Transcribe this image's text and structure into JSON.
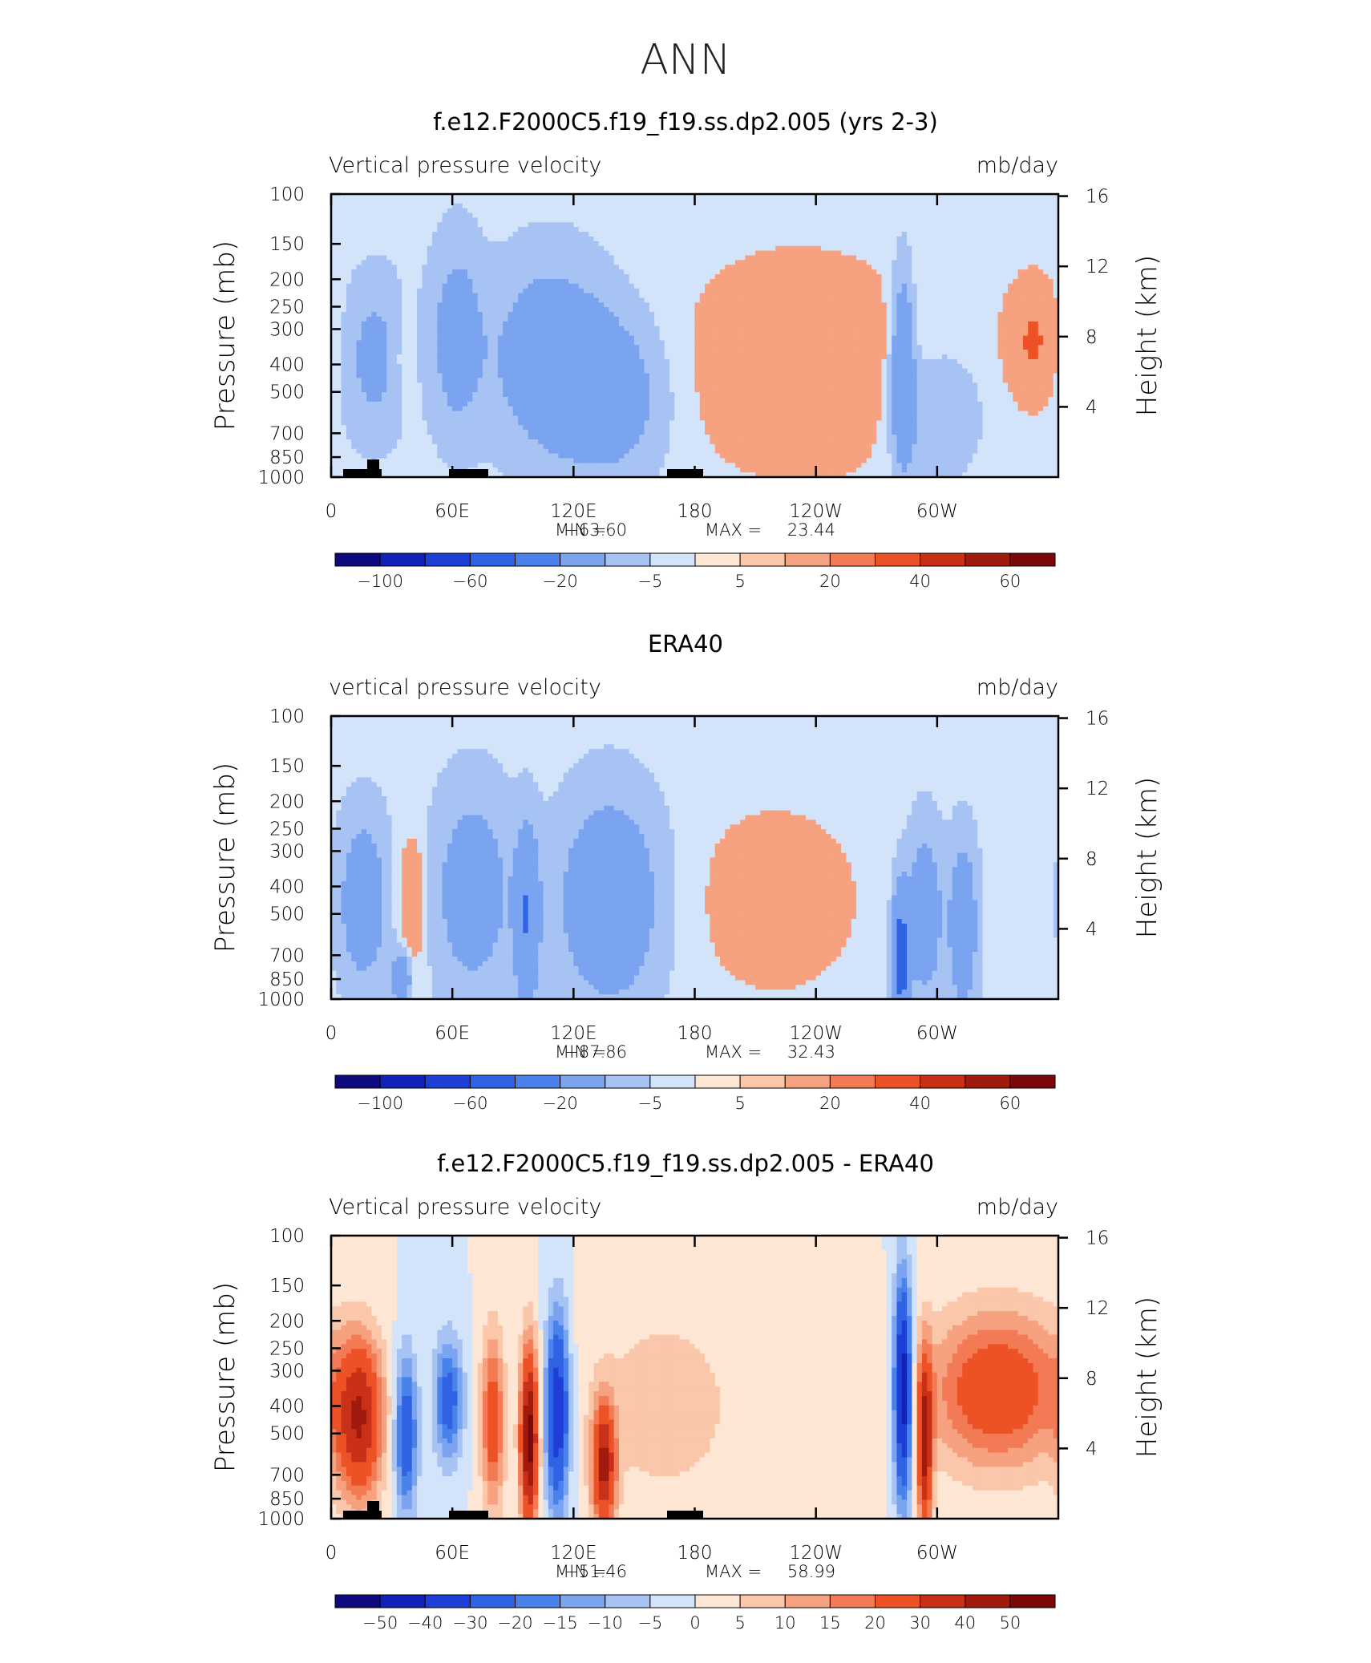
{
  "figure_title": "ANN",
  "chart_data": [
    {
      "type": "heatmap",
      "title": "f.e12.F2000C5.f19_f19.ss.dp2.005 (yrs 2-3)",
      "left_label": "Vertical pressure velocity",
      "right_label": "mb/day",
      "ylabel": "Pressure (mb)",
      "y2label": "Height (km)",
      "x_ticks": [
        "0",
        "60E",
        "120E",
        "180",
        "120W",
        "60W"
      ],
      "y_ticks": [
        "100",
        "150",
        "200",
        "250",
        "300",
        "400",
        "500",
        "700",
        "850",
        "1000"
      ],
      "y2_ticks": [
        "16",
        "12",
        "8",
        "4"
      ],
      "stats": {
        "min_label": "MIN =",
        "min": "−63.60",
        "max_label": "MAX =",
        "max": "23.44"
      },
      "levels": [
        "−100",
        "−60",
        "−20",
        "−5",
        "5",
        "20",
        "40",
        "60"
      ],
      "colorbar_tick_slots": [
        1,
        3,
        5,
        7,
        9,
        11,
        13,
        15
      ],
      "has_orography": true,
      "features": [
        {
          "lon": 22,
          "p": 380,
          "w": 12,
          "h": 0.45,
          "v": -28
        },
        {
          "lon": 36,
          "p": 380,
          "w": 5,
          "h": 0.3,
          "v": 14
        },
        {
          "lon": 62,
          "p": 320,
          "w": 9,
          "h": 0.55,
          "v": -32
        },
        {
          "lon": 108,
          "p": 380,
          "w": 20,
          "h": 0.55,
          "v": -40
        },
        {
          "lon": 140,
          "p": 520,
          "w": 18,
          "h": 0.45,
          "v": -34
        },
        {
          "lon": 232,
          "p": 400,
          "w": 40,
          "h": 0.6,
          "v": 18
        },
        {
          "lon": 283,
          "p": 420,
          "w": 4,
          "h": 0.55,
          "v": -55
        },
        {
          "lon": 300,
          "p": 600,
          "w": 14,
          "h": 0.35,
          "v": -22
        },
        {
          "lon": 348,
          "p": 330,
          "w": 10,
          "h": 0.35,
          "v": 22
        }
      ]
    },
    {
      "type": "heatmap",
      "title": "ERA40",
      "left_label": "vertical pressure velocity",
      "right_label": "mb/day",
      "ylabel": "Pressure (mb)",
      "y2label": "Height (km)",
      "x_ticks": [
        "0",
        "60E",
        "120E",
        "180",
        "120W",
        "60W"
      ],
      "y_ticks": [
        "100",
        "150",
        "200",
        "250",
        "300",
        "400",
        "500",
        "700",
        "850",
        "1000"
      ],
      "y2_ticks": [
        "16",
        "12",
        "8",
        "4"
      ],
      "stats": {
        "min_label": "MIN =",
        "min": "−87.86",
        "max_label": "MAX =",
        "max": "32.43"
      },
      "levels": [
        "−100",
        "−60",
        "−20",
        "−5",
        "5",
        "20",
        "40",
        "60"
      ],
      "colorbar_tick_slots": [
        1,
        3,
        5,
        7,
        9,
        11,
        13,
        15
      ],
      "has_orography": false,
      "features": [
        {
          "lon": 16,
          "p": 450,
          "w": 9,
          "h": 0.5,
          "v": -38
        },
        {
          "lon": 40,
          "p": 450,
          "w": 5,
          "h": 0.35,
          "v": 25
        },
        {
          "lon": 35,
          "p": 850,
          "w": 3,
          "h": 0.15,
          "v": -50
        },
        {
          "lon": 70,
          "p": 420,
          "w": 14,
          "h": 0.6,
          "v": -35
        },
        {
          "lon": 97,
          "p": 520,
          "w": 4,
          "h": 0.5,
          "v": -55
        },
        {
          "lon": 138,
          "p": 450,
          "w": 18,
          "h": 0.6,
          "v": -45
        },
        {
          "lon": 220,
          "p": 450,
          "w": 30,
          "h": 0.55,
          "v": 12
        },
        {
          "lon": 282,
          "p": 720,
          "w": 3,
          "h": 0.4,
          "v": -80
        },
        {
          "lon": 294,
          "p": 500,
          "w": 6,
          "h": 0.5,
          "v": -40
        },
        {
          "lon": 313,
          "p": 550,
          "w": 5,
          "h": 0.5,
          "v": -42
        }
      ]
    },
    {
      "type": "heatmap",
      "title": "f.e12.F2000C5.f19_f19.ss.dp2.005 - ERA40",
      "left_label": "Vertical pressure velocity",
      "right_label": "mb/day",
      "ylabel": "Pressure (mb)",
      "y2label": "Height (km)",
      "x_ticks": [
        "0",
        "60E",
        "120E",
        "180",
        "120W",
        "60W"
      ],
      "y_ticks": [
        "100",
        "150",
        "200",
        "250",
        "300",
        "400",
        "500",
        "700",
        "850",
        "1000"
      ],
      "y2_ticks": [
        "16",
        "12",
        "8",
        "4"
      ],
      "stats": {
        "min_label": "MIN =",
        "min": "−51.46",
        "max_label": "MAX =",
        "max": "58.99"
      },
      "levels": [
        "−50",
        "−40",
        "−30",
        "−20",
        "−15",
        "−10",
        "−5",
        "0",
        "5",
        "10",
        "15",
        "20",
        "30",
        "40",
        "50"
      ],
      "colorbar_tick_slots": [
        1,
        2,
        3,
        4,
        5,
        6,
        7,
        8,
        9,
        10,
        11,
        12,
        13,
        14,
        15
      ],
      "has_orography": true,
      "features": [
        {
          "lon": 14,
          "p": 450,
          "w": 8,
          "h": 0.45,
          "v": 38
        },
        {
          "lon": 37,
          "p": 500,
          "w": 4,
          "h": 0.45,
          "v": -28
        },
        {
          "lon": 58,
          "p": 380,
          "w": 5,
          "h": 0.35,
          "v": -25
        },
        {
          "lon": 80,
          "p": 450,
          "w": 4,
          "h": 0.5,
          "v": 26
        },
        {
          "lon": 98,
          "p": 520,
          "w": 3,
          "h": 0.5,
          "v": 55
        },
        {
          "lon": 112,
          "p": 420,
          "w": 4,
          "h": 0.55,
          "v": -40
        },
        {
          "lon": 135,
          "p": 650,
          "w": 4,
          "h": 0.35,
          "v": 42
        },
        {
          "lon": 165,
          "p": 400,
          "w": 28,
          "h": 0.6,
          "v": 8
        },
        {
          "lon": 283,
          "p": 350,
          "w": 3,
          "h": 0.6,
          "v": -50
        },
        {
          "lon": 294,
          "p": 550,
          "w": 2.5,
          "h": 0.5,
          "v": 42
        },
        {
          "lon": 330,
          "p": 350,
          "w": 24,
          "h": 0.45,
          "v": 28
        }
      ]
    }
  ]
}
